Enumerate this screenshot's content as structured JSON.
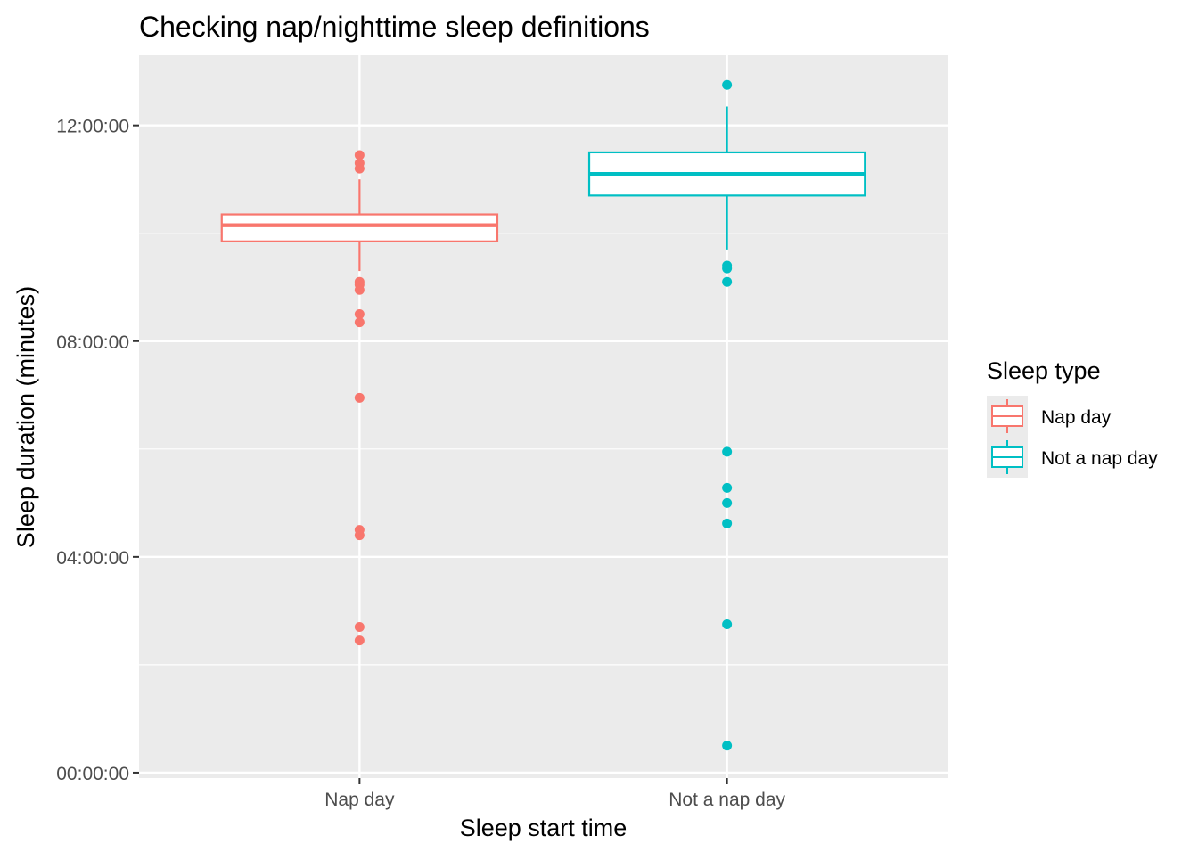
{
  "chart_data": {
    "type": "boxplot",
    "title": "Checking nap/nighttime sleep definitions",
    "xlabel": "Sleep start time",
    "ylabel": "Sleep duration (minutes)",
    "ylim_hours": [
      -0.1,
      13.3
    ],
    "y_tick_values_hours": [
      0,
      4,
      8,
      12
    ],
    "y_tick_labels": [
      "00:00:00",
      "04:00:00",
      "08:00:00",
      "12:00:00"
    ],
    "grid": true,
    "legend": {
      "title": "Sleep type",
      "position": "right",
      "entries": [
        "Nap day",
        "Not a nap day"
      ]
    },
    "categories": [
      "Nap day",
      "Not a nap day"
    ],
    "series": [
      {
        "name": "Nap day",
        "color": "#F8766D",
        "whisker_low": 9.3,
        "q1": 9.85,
        "median": 10.15,
        "q3": 10.35,
        "whisker_high": 11.0,
        "outliers": [
          11.45,
          11.3,
          11.2,
          9.1,
          9.05,
          8.95,
          8.5,
          8.35,
          6.95,
          4.5,
          4.4,
          2.7,
          2.45
        ]
      },
      {
        "name": "Not a nap day",
        "color": "#00BFC4",
        "whisker_low": 9.7,
        "q1": 10.7,
        "median": 11.1,
        "q3": 11.5,
        "whisker_high": 12.35,
        "outliers": [
          12.75,
          9.4,
          9.35,
          9.1,
          5.95,
          5.28,
          5.0,
          4.62,
          2.75,
          0.5
        ]
      }
    ]
  }
}
